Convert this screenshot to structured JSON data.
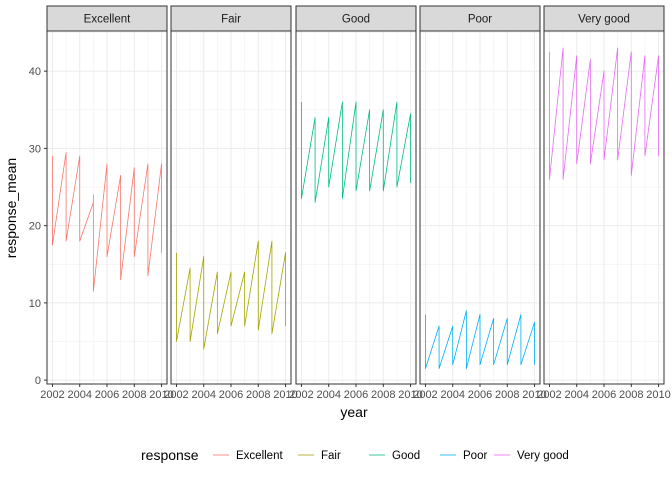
{
  "chart_data": {
    "type": "line",
    "xlabel": "year",
    "ylabel": "response_mean",
    "facets": [
      "Excellent",
      "Fair",
      "Good",
      "Poor",
      "Very good"
    ],
    "x_ticks": [
      2002,
      2004,
      2006,
      2008,
      2010
    ],
    "x_tick_labels": [
      "2002",
      "2004",
      "2006",
      "2008",
      "2010"
    ],
    "y_ticks": [
      0,
      10,
      20,
      30,
      40
    ],
    "y_tick_labels": [
      "0",
      "10",
      "20",
      "30",
      "40"
    ],
    "xlim": [
      2001.6,
      2010.4
    ],
    "ylim": [
      -0.5,
      45.2
    ],
    "grid": true,
    "legend": {
      "title": "response",
      "position": "bottom",
      "entries": [
        "Excellent",
        "Fair",
        "Good",
        "Poor",
        "Very good"
      ]
    },
    "colors": {
      "Excellent": "#F8766D",
      "Fair": "#A3A500",
      "Good": "#00BF7D",
      "Poor": "#00B0F6",
      "Very good": "#E76BF3"
    },
    "series": [
      {
        "name": "Excellent",
        "x": [
          2002,
          2002,
          2002,
          2003,
          2003,
          2003,
          2004,
          2004,
          2004,
          2005,
          2005,
          2005,
          2006,
          2006,
          2006,
          2007,
          2007,
          2007,
          2008,
          2008,
          2008,
          2009,
          2009,
          2009,
          2010,
          2010,
          2010
        ],
        "y": [
          29.0,
          25.5,
          17.5,
          29.5,
          22.5,
          18.0,
          29.0,
          23.0,
          18.0,
          23.0,
          24.0,
          11.5,
          28.0,
          23.0,
          16.0,
          26.5,
          20.0,
          13.0,
          27.5,
          20.5,
          16.0,
          28.0,
          23.0,
          13.5,
          28.0,
          18.5,
          16.5
        ]
      },
      {
        "name": "Fair",
        "x": [
          2002,
          2002,
          2002,
          2003,
          2003,
          2003,
          2004,
          2004,
          2004,
          2005,
          2005,
          2005,
          2006,
          2006,
          2006,
          2007,
          2007,
          2007,
          2008,
          2008,
          2008,
          2009,
          2009,
          2009,
          2010,
          2010,
          2010
        ],
        "y": [
          16.5,
          8.5,
          5.0,
          14.5,
          7.5,
          5.0,
          16.0,
          8.0,
          4.0,
          14.0,
          9.5,
          6.0,
          14.0,
          9.5,
          7.0,
          14.0,
          9.0,
          7.0,
          18.0,
          9.0,
          6.5,
          18.0,
          8.5,
          6.0,
          16.5,
          13.5,
          7.0
        ]
      },
      {
        "name": "Good",
        "x": [
          2002,
          2002,
          2002,
          2003,
          2003,
          2003,
          2004,
          2004,
          2004,
          2005,
          2005,
          2005,
          2006,
          2006,
          2006,
          2007,
          2007,
          2007,
          2008,
          2008,
          2008,
          2009,
          2009,
          2009,
          2010,
          2010,
          2010
        ],
        "y": [
          36.0,
          25.5,
          23.5,
          34.0,
          29.5,
          23.0,
          34.0,
          29.0,
          25.0,
          36.0,
          30.5,
          23.5,
          36.0,
          29.5,
          24.5,
          35.0,
          33.0,
          24.5,
          35.0,
          31.5,
          24.5,
          36.0,
          28.0,
          25.0,
          34.5,
          33.5,
          25.5
        ]
      },
      {
        "name": "Poor",
        "x": [
          2002,
          2002,
          2002,
          2003,
          2003,
          2003,
          2004,
          2004,
          2004,
          2005,
          2005,
          2005,
          2006,
          2006,
          2006,
          2007,
          2007,
          2007,
          2008,
          2008,
          2008,
          2009,
          2009,
          2009,
          2010,
          2010,
          2010
        ],
        "y": [
          8.5,
          4.0,
          1.5,
          7.0,
          3.0,
          1.5,
          7.0,
          3.5,
          2.0,
          9.0,
          4.0,
          1.5,
          8.5,
          4.5,
          2.0,
          8.0,
          3.5,
          2.0,
          8.0,
          3.5,
          2.0,
          8.5,
          4.5,
          2.0,
          7.5,
          5.5,
          2.0
        ]
      },
      {
        "name": "Very good",
        "x": [
          2002,
          2002,
          2002,
          2003,
          2003,
          2003,
          2004,
          2004,
          2004,
          2005,
          2005,
          2005,
          2006,
          2006,
          2006,
          2007,
          2007,
          2007,
          2008,
          2008,
          2008,
          2009,
          2009,
          2009,
          2010,
          2010,
          2010
        ],
        "y": [
          42.5,
          36.0,
          26.0,
          43.0,
          37.5,
          26.0,
          42.0,
          38.0,
          28.0,
          41.5,
          33.0,
          28.0,
          40.0,
          37.5,
          28.5,
          43.0,
          37.5,
          28.5,
          42.5,
          36.0,
          26.5,
          42.0,
          37.0,
          29.0,
          42.0,
          30.5,
          29.0
        ]
      }
    ]
  }
}
